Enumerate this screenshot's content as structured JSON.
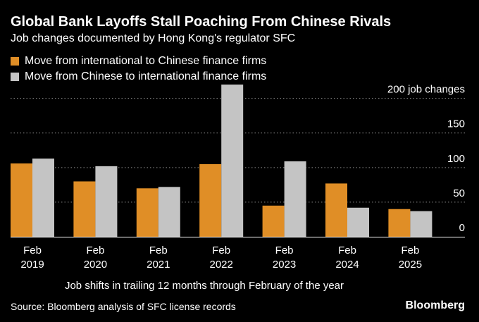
{
  "header": {
    "title": "Global Bank Layoffs Stall Poaching From Chinese Rivals",
    "subtitle": "Job changes documented by Hong Kong's regulator SFC"
  },
  "footer": {
    "source": "Source: Bloomberg analysis of SFC license records",
    "brand": "Bloomberg"
  },
  "chart_data": {
    "type": "bar",
    "categories": [
      "Feb\n2019",
      "Feb\n2020",
      "Feb\n2021",
      "Feb\n2022",
      "Feb\n2023",
      "Feb\n2024",
      "Feb\n2025"
    ],
    "series": [
      {
        "name": "Move from international to Chinese finance firms",
        "color": "#E08E26",
        "values": [
          106,
          80,
          70,
          105,
          45,
          77,
          40
        ]
      },
      {
        "name": "Move from Chinese to international finance firms",
        "color": "#C4C4C4",
        "values": [
          113,
          102,
          72,
          220,
          109,
          42,
          37
        ]
      }
    ],
    "yticks": [
      0,
      50,
      100,
      150,
      200
    ],
    "ytick_labels": [
      "0",
      "50",
      "100",
      "150",
      "200 job changes"
    ],
    "ylim": [
      0,
      220
    ],
    "xlabel": "Job shifts in trailing 12 months through February of the year",
    "ylabel": "",
    "grid": true,
    "legend_position": "top-left"
  }
}
